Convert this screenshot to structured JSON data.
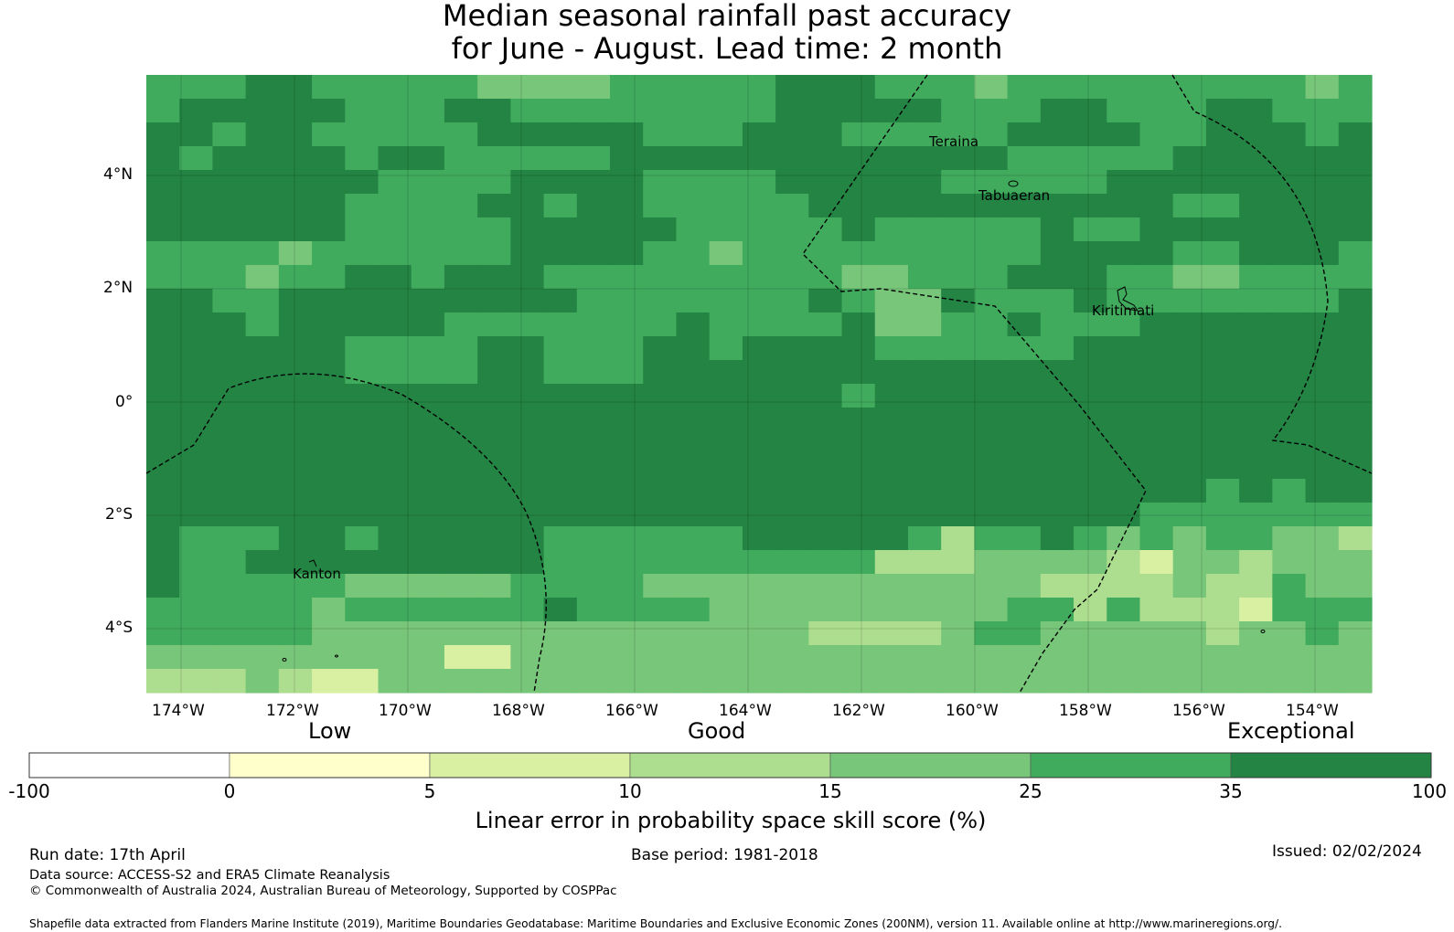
{
  "title": {
    "line1": "Median seasonal rainfall past accuracy",
    "line2": "for June - August. Lead time: 2 month"
  },
  "map": {
    "lat_ticks": [
      "4°N",
      "2°N",
      "0°",
      "2°S",
      "4°S"
    ],
    "lon_ticks": [
      "174°W",
      "172°W",
      "170°W",
      "168°W",
      "166°W",
      "164°W",
      "162°W",
      "160°W",
      "158°W",
      "156°W",
      "154°W"
    ],
    "island_labels": [
      "Teraina",
      "Tabuaeran",
      "Kiritimati",
      "Kanton"
    ],
    "palette": [
      "#ffffff",
      "#ffffcc",
      "#d9f0a3",
      "#addd8e",
      "#78c679",
      "#41ab5d",
      "#238443"
    ],
    "grid_rows": [
      "5556655555444455555666555455555555545",
      "5666665556655555555666665556655566555",
      "6656655555666665556665555566665566656",
      "6566665665555566666666666655555666666",
      "6666666555566665555666665555566666666",
      "6666665555665665555566666666666556666",
      "6666665555566666555556555556556666666",
      "5555455555566665545555555556666556665",
      "5554556656665555555554455566655445555",
      "6655666666666555555565446555655555556",
      "6665666665555555655556445565556666666",
      "6666665555665556656666555555666666666",
      "6666665555665556666666666666666666666",
      "6666666666666666666665666666666666666",
      "6666666666666666666666666666666666666",
      "6666666666666666666666666666666666666",
      "6666666666666666666666666666666666666",
      "6666666666666666666666666666666656566",
      "6666666666666666666666666666665555555",
      "6555665666665555556666653556545455443",
      "6556666666665555555555333444432443444",
      "6555554444455554444444444443333433544",
      "5555545555556555544444444455353332555",
      "5555544444444444444433334554444434454",
      "4444444442244444444444444444444444444",
      "3334322444444444444444444444444444444"
    ]
  },
  "colorbar": {
    "words": [
      "Low",
      "Good",
      "Exceptional"
    ],
    "ticks": [
      "-100",
      "0",
      "5",
      "10",
      "15",
      "25",
      "35",
      "100"
    ],
    "label": "Linear error in probability space skill score (%)"
  },
  "footer": {
    "run_date": "Run date: 17th April",
    "base_period": "Base period: 1981-2018",
    "issued": "Issued: 02/02/2024",
    "data_source": "Data source: ACCESS-S2 and ERA5 Climate Reanalysis",
    "copyright": "© Commonwealth of Australia 2024, Australian Bureau of Meteorology, Supported by COSPPac",
    "shapefile": "Shapefile data extracted from Flanders Marine Institute (2019), Maritime Boundaries Geodatabase: Maritime Boundaries and Exclusive Economic Zones (200NM), version 11. Available online at http://www.marineregions.org/."
  }
}
